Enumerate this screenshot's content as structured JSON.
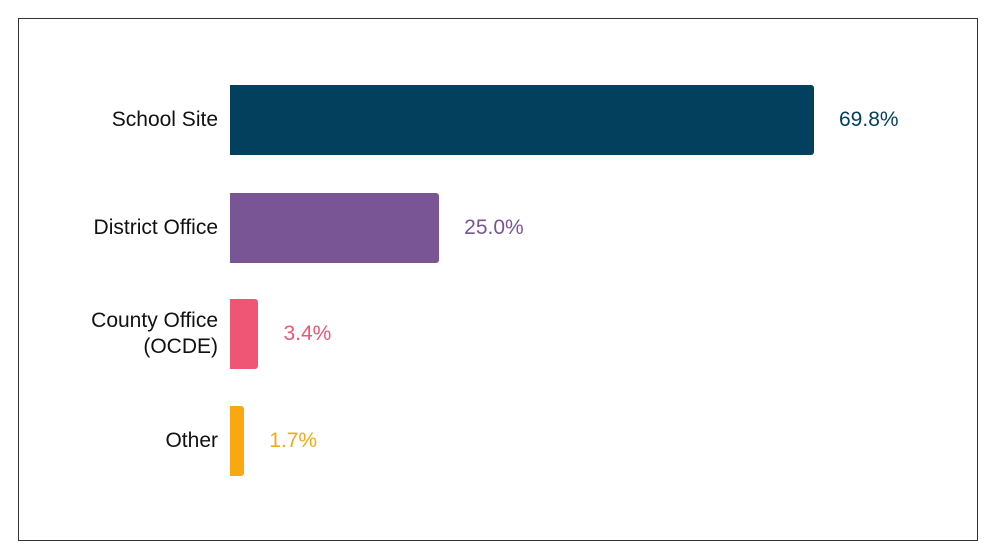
{
  "chart_data": {
    "type": "bar",
    "orientation": "horizontal",
    "categories": [
      "School Site",
      "District Office",
      "County Office (OCDE)",
      "Other"
    ],
    "values": [
      69.8,
      25.0,
      3.4,
      1.7
    ],
    "value_labels": [
      "69.8%",
      "25.0%",
      "3.4%",
      "1.7%"
    ],
    "colors": [
      "#02405e",
      "#7a5596",
      "#ef5675",
      "#f9a80f"
    ]
  }
}
